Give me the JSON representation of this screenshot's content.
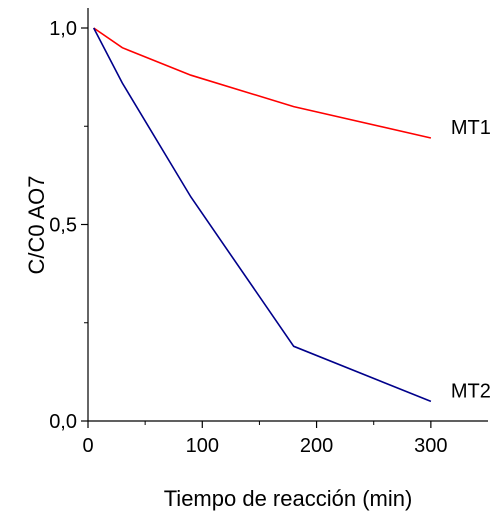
{
  "chart_data": {
    "type": "line",
    "xlabel": "Tiempo de reacción (min)",
    "ylabel": "C/C0 AO7",
    "xlim": [
      0,
      350
    ],
    "ylim": [
      0,
      1.0
    ],
    "x_ticks": [
      0,
      100,
      200,
      300
    ],
    "x_tick_labels": [
      "0",
      "100",
      "200",
      "300"
    ],
    "y_ticks": [
      0,
      0.5,
      1.0
    ],
    "y_tick_labels": [
      "0,0",
      "0,5",
      "1,0"
    ],
    "grid": false,
    "series": [
      {
        "name": "MT1",
        "color": "#ff0000",
        "x": [
          5,
          30,
          90,
          180,
          300
        ],
        "y": [
          1.0,
          0.95,
          0.88,
          0.8,
          0.72
        ]
      },
      {
        "name": "MT2",
        "color": "#00008b",
        "x": [
          5,
          30,
          90,
          180,
          300
        ],
        "y": [
          1.0,
          0.86,
          0.57,
          0.19,
          0.05
        ]
      }
    ]
  }
}
